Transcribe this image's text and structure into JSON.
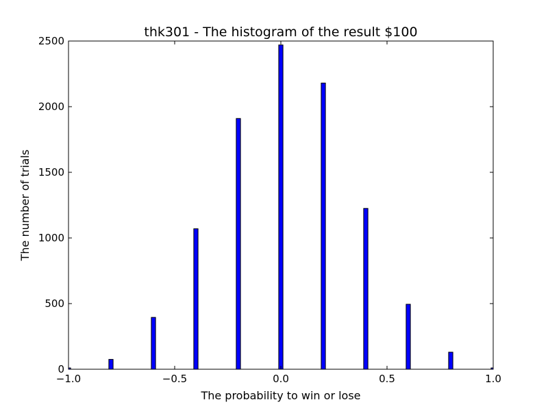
{
  "chart_data": {
    "type": "bar",
    "title": "thk301 - The histogram of the result $100",
    "xlabel": "The probability to win or lose",
    "ylabel": "The number of trials",
    "xlim": [
      -1.0,
      1.0
    ],
    "ylim": [
      0,
      2500
    ],
    "x_ticks": [
      {
        "value": -1.0,
        "label": "−1.0"
      },
      {
        "value": -0.5,
        "label": "−0.5"
      },
      {
        "value": 0.0,
        "label": "0.0"
      },
      {
        "value": 0.5,
        "label": "0.5"
      },
      {
        "value": 1.0,
        "label": "1.0"
      }
    ],
    "y_ticks": [
      {
        "value": 0,
        "label": "0"
      },
      {
        "value": 500,
        "label": "500"
      },
      {
        "value": 1000,
        "label": "1000"
      },
      {
        "value": 1500,
        "label": "1500"
      },
      {
        "value": 2000,
        "label": "2000"
      },
      {
        "value": 2500,
        "label": "2500"
      }
    ],
    "bin_width": 0.02,
    "bar_color": "#0000ff",
    "edge_color": "#000000",
    "grid": false,
    "x": [
      -1.0,
      -0.8,
      -0.6,
      -0.4,
      -0.2,
      0.0,
      0.2,
      0.4,
      0.6,
      0.8,
      1.0
    ],
    "values": [
      10,
      75,
      395,
      1070,
      1910,
      2470,
      2180,
      1225,
      495,
      130,
      10
    ]
  }
}
